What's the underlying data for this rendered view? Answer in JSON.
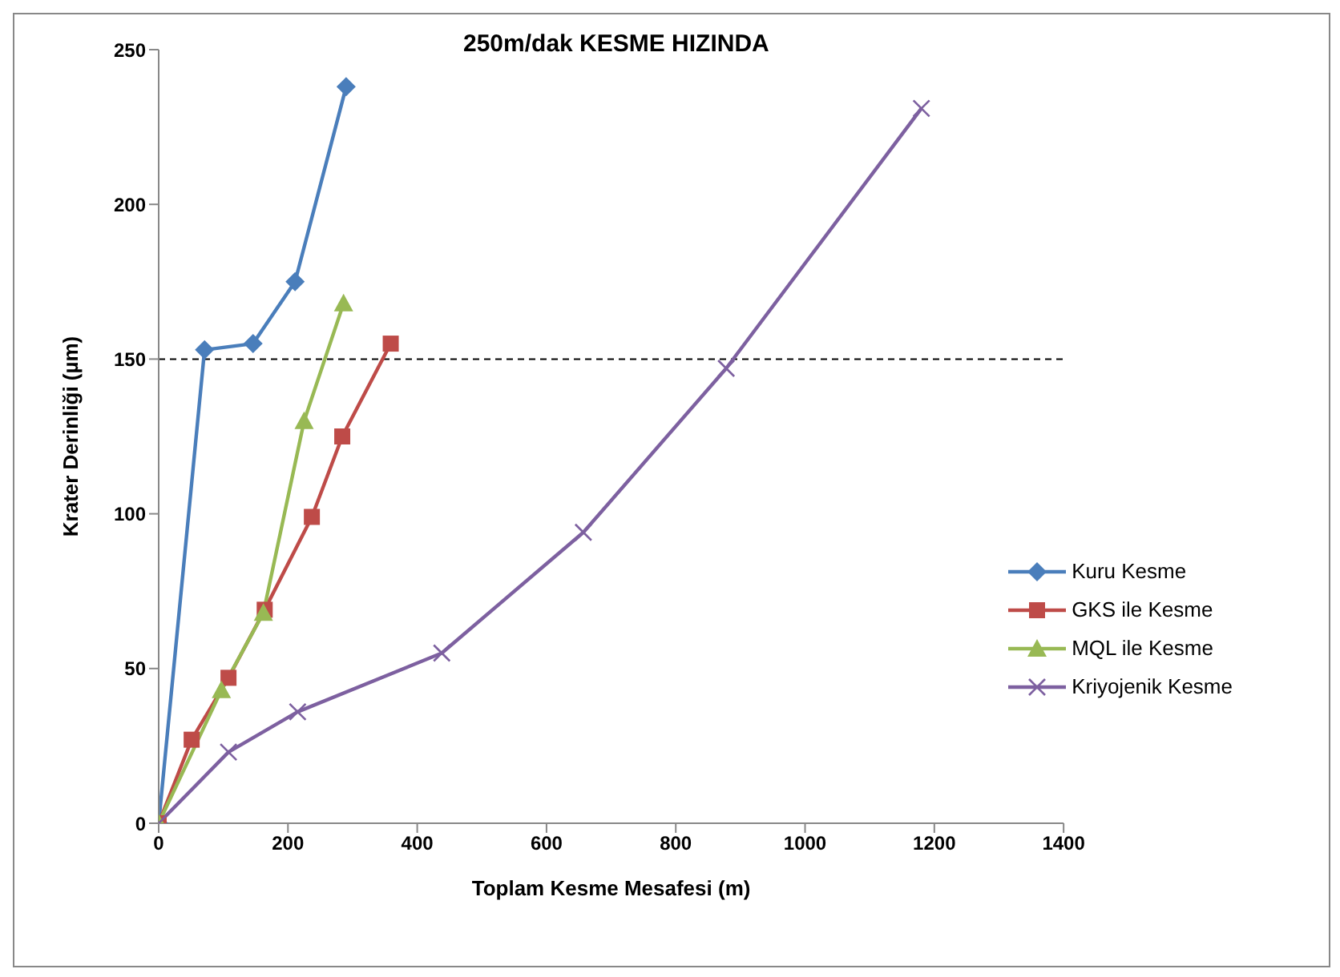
{
  "chart_data": {
    "type": "line",
    "title": "250m/dak KESME HIZINDA",
    "xlabel": "Toplam Kesme Mesafesi (m)",
    "ylabel": "Krater Derinliği (µm)",
    "xlim": [
      0,
      1400
    ],
    "xticks": [
      0,
      200,
      400,
      600,
      800,
      1000,
      1200,
      1400
    ],
    "ylim": [
      0,
      250
    ],
    "yticks": [
      0,
      50,
      100,
      150,
      200,
      250
    ],
    "grid": false,
    "legend": "right",
    "series": [
      {
        "name": "Kuru Kesme",
        "color": "#4a7ebb",
        "marker": "diamond",
        "x": [
          0,
          71,
          146,
          211,
          290
        ],
        "values": [
          0,
          153,
          155,
          175,
          238
        ]
      },
      {
        "name": "GKS ile Kesme",
        "color": "#be4b48",
        "marker": "square",
        "x": [
          0,
          51,
          108,
          164,
          237,
          284,
          359
        ],
        "values": [
          0,
          27,
          47,
          69,
          99,
          125,
          155
        ]
      },
      {
        "name": "MQL ile Kesme",
        "color": "#98b954",
        "marker": "triangle",
        "x": [
          0,
          97,
          162,
          225,
          286
        ],
        "values": [
          0,
          43,
          68,
          130,
          168
        ]
      },
      {
        "name": "Kriyojenik Kesme",
        "color": "#7d60a0",
        "marker": "cross",
        "x": [
          0,
          108,
          215,
          438,
          657,
          878,
          1180
        ],
        "values": [
          0,
          23,
          36,
          55,
          94,
          147,
          231
        ]
      }
    ],
    "ref_lines": [
      {
        "axis": "y",
        "value": 150,
        "color": "#000000",
        "line_style": "dashed"
      }
    ]
  }
}
